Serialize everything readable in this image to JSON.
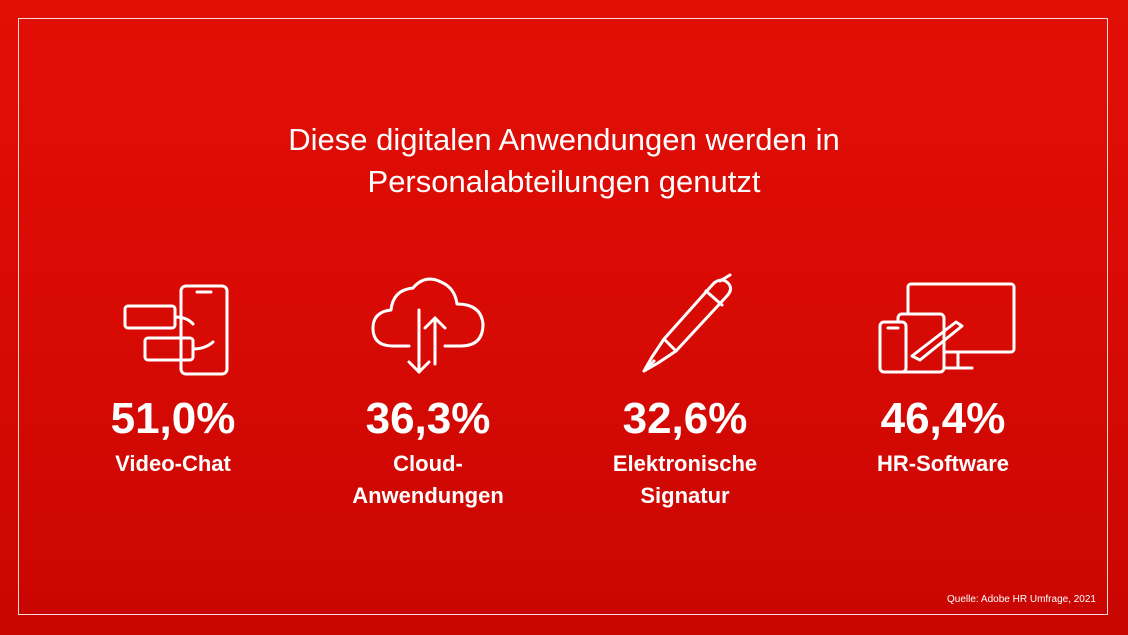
{
  "title": {
    "line1": "Diese digitalen Anwendungen werden in",
    "line2": "Personalabteilungen genutzt"
  },
  "stats": [
    {
      "value": "51,0%",
      "label_line1": "Video-Chat",
      "label_line2": "",
      "icon": "video-chat-icon"
    },
    {
      "value": "36,3%",
      "label_line1": "Cloud-",
      "label_line2": "Anwendungen",
      "icon": "cloud-sync-icon"
    },
    {
      "value": "32,6%",
      "label_line1": "Elektronische",
      "label_line2": "Signatur",
      "icon": "fountain-pen-icon"
    },
    {
      "value": "46,4%",
      "label_line1": "HR-Software",
      "label_line2": "",
      "icon": "devices-icon"
    }
  ],
  "source": "Quelle: Adobe HR Umfrage, 2021",
  "colors": {
    "background": "#d80a04",
    "foreground": "#ffffff"
  }
}
